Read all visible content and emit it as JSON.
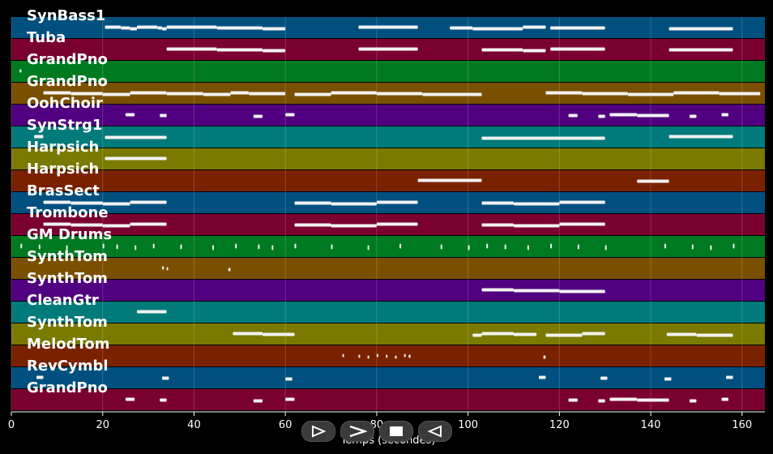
{
  "colors": {
    "background": "#000000",
    "note": "#f2f2f2",
    "grid": "#ffffff"
  },
  "controls": {
    "rewind_icon": "rewind-icon",
    "play_icon": "play-icon",
    "stop_icon": "stop-icon",
    "back_icon": "back-icon"
  },
  "chart_data": {
    "type": "piano-roll",
    "xlabel": "Temps (secondes)",
    "xlim": [
      0,
      165
    ],
    "xticks": [
      0,
      20,
      40,
      60,
      80,
      100,
      120,
      140,
      160
    ],
    "grid": true,
    "tracks": [
      {
        "name": "SynBass1",
        "color": "#00507f",
        "notes": [
          [
            20.5,
            24
          ],
          [
            24,
            26
          ],
          [
            26,
            27.5
          ],
          [
            27.5,
            32
          ],
          [
            32,
            33
          ],
          [
            33,
            34
          ],
          [
            34,
            45
          ],
          [
            45,
            55
          ],
          [
            55,
            60
          ],
          [
            76,
            89
          ],
          [
            96,
            101
          ],
          [
            101,
            112
          ],
          [
            112,
            117
          ],
          [
            118,
            130
          ],
          [
            144,
            158
          ]
        ]
      },
      {
        "name": "Tuba",
        "color": "#7a0030",
        "notes": [
          [
            34,
            45
          ],
          [
            45,
            55
          ],
          [
            55,
            60
          ],
          [
            76,
            89
          ],
          [
            103,
            112
          ],
          [
            112,
            117
          ],
          [
            118,
            130
          ],
          [
            144,
            158
          ]
        ]
      },
      {
        "name": "GrandPno",
        "color": "#007a20",
        "notes": [
          [
            1.8,
            2.2
          ]
        ]
      },
      {
        "name": "GrandPno",
        "color": "#7a5000",
        "notes": [
          [
            7,
            13
          ],
          [
            13,
            20
          ],
          [
            20,
            26
          ],
          [
            26,
            34
          ],
          [
            34,
            42
          ],
          [
            42,
            48
          ],
          [
            48,
            52
          ],
          [
            52,
            60
          ],
          [
            62,
            70
          ],
          [
            70,
            80
          ],
          [
            80,
            90
          ],
          [
            90,
            103
          ],
          [
            117,
            125
          ],
          [
            125,
            135
          ],
          [
            135,
            145
          ],
          [
            145,
            155
          ],
          [
            155,
            164
          ]
        ]
      },
      {
        "name": "OohChoir",
        "color": "#500080",
        "notes": [
          [
            25,
            27
          ],
          [
            32.5,
            34
          ],
          [
            53,
            55
          ],
          [
            60,
            62
          ],
          [
            122,
            124
          ],
          [
            128.5,
            130
          ],
          [
            131,
            137
          ],
          [
            137,
            144
          ],
          [
            148.5,
            150
          ],
          [
            155.5,
            157
          ]
        ]
      },
      {
        "name": "SynStrg1",
        "color": "#007a7a",
        "notes": [
          [
            5,
            7
          ],
          [
            20.5,
            34
          ],
          [
            103,
            130
          ],
          [
            144,
            158
          ]
        ]
      },
      {
        "name": "Harpsich",
        "color": "#7a7a00",
        "notes": [
          [
            20.5,
            34
          ]
        ]
      },
      {
        "name": "Harpsich",
        "color": "#7a2200",
        "notes": [
          [
            89,
            103
          ],
          [
            137,
            144
          ]
        ]
      },
      {
        "name": "BrasSect",
        "color": "#00507f",
        "notes": [
          [
            7,
            13
          ],
          [
            13,
            20
          ],
          [
            20,
            26
          ],
          [
            26,
            34
          ],
          [
            62,
            70
          ],
          [
            70,
            80
          ],
          [
            80,
            89
          ],
          [
            103,
            110
          ],
          [
            110,
            120
          ],
          [
            120,
            130
          ]
        ]
      },
      {
        "name": "Trombone",
        "color": "#7a0030",
        "notes": [
          [
            7,
            13
          ],
          [
            13,
            20
          ],
          [
            20,
            26
          ],
          [
            26,
            34
          ],
          [
            62,
            70
          ],
          [
            70,
            80
          ],
          [
            80,
            89
          ],
          [
            103,
            110
          ],
          [
            110,
            120
          ],
          [
            120,
            130
          ]
        ]
      },
      {
        "name": "GM Drums",
        "color": "#007a20",
        "notes": [
          [
            2,
            2.3
          ],
          [
            6,
            6.3
          ],
          [
            12,
            12.3
          ],
          [
            20,
            20.3
          ],
          [
            23,
            23.3
          ],
          [
            27,
            27.3
          ],
          [
            31,
            31.3
          ],
          [
            37,
            37.3
          ],
          [
            44,
            44.3
          ],
          [
            49,
            49.3
          ],
          [
            54,
            54.3
          ],
          [
            57,
            57.3
          ],
          [
            62,
            62.3
          ],
          [
            70,
            70.3
          ],
          [
            78,
            78.3
          ],
          [
            85,
            85.3
          ],
          [
            94,
            94.3
          ],
          [
            100,
            100.3
          ],
          [
            104,
            104.3
          ],
          [
            108,
            108.3
          ],
          [
            113,
            113.3
          ],
          [
            118,
            118.3
          ],
          [
            124,
            124.3
          ],
          [
            130,
            130.3
          ],
          [
            143,
            143.3
          ],
          [
            149,
            149.3
          ],
          [
            153,
            153.3
          ],
          [
            158,
            158.3
          ]
        ]
      },
      {
        "name": "SynthTom",
        "color": "#7a5000",
        "notes": [
          [
            33,
            33.4
          ],
          [
            34,
            34.3
          ],
          [
            47.5,
            48
          ]
        ]
      },
      {
        "name": "SynthTom",
        "color": "#500080",
        "notes": [
          [
            103,
            110
          ],
          [
            110,
            120
          ],
          [
            120,
            130
          ]
        ]
      },
      {
        "name": "CleanGtr",
        "color": "#007a7a",
        "notes": [
          [
            27.5,
            34
          ]
        ]
      },
      {
        "name": "SynthTom",
        "color": "#7a7a00",
        "notes": [
          [
            48.5,
            55
          ],
          [
            55,
            62
          ],
          [
            101,
            103
          ],
          [
            103,
            110
          ],
          [
            110,
            115
          ],
          [
            117,
            125
          ],
          [
            125,
            130
          ],
          [
            143.5,
            150
          ],
          [
            150,
            158
          ]
        ]
      },
      {
        "name": "MelodTom",
        "color": "#7a2200",
        "notes": [
          [
            72.5,
            72.8
          ],
          [
            76,
            76.3
          ],
          [
            78,
            78.3
          ],
          [
            80,
            80.3
          ],
          [
            82,
            82.3
          ],
          [
            84,
            84.3
          ],
          [
            86,
            86.3
          ],
          [
            87,
            87.4
          ],
          [
            116.5,
            117
          ]
        ]
      },
      {
        "name": "RevCymbl",
        "color": "#00507f",
        "notes": [
          [
            5.5,
            7
          ],
          [
            33,
            34.5
          ],
          [
            60,
            61.5
          ],
          [
            115.5,
            117
          ],
          [
            129,
            130.5
          ],
          [
            143,
            144.5
          ],
          [
            156.5,
            158
          ]
        ]
      },
      {
        "name": "GrandPno",
        "color": "#7a0030",
        "notes": [
          [
            25,
            27
          ],
          [
            32.5,
            34
          ],
          [
            53,
            55
          ],
          [
            60,
            62
          ],
          [
            122,
            124
          ],
          [
            128.5,
            130
          ],
          [
            131,
            137
          ],
          [
            137,
            144
          ],
          [
            148.5,
            150
          ],
          [
            155.5,
            157
          ]
        ]
      }
    ]
  }
}
